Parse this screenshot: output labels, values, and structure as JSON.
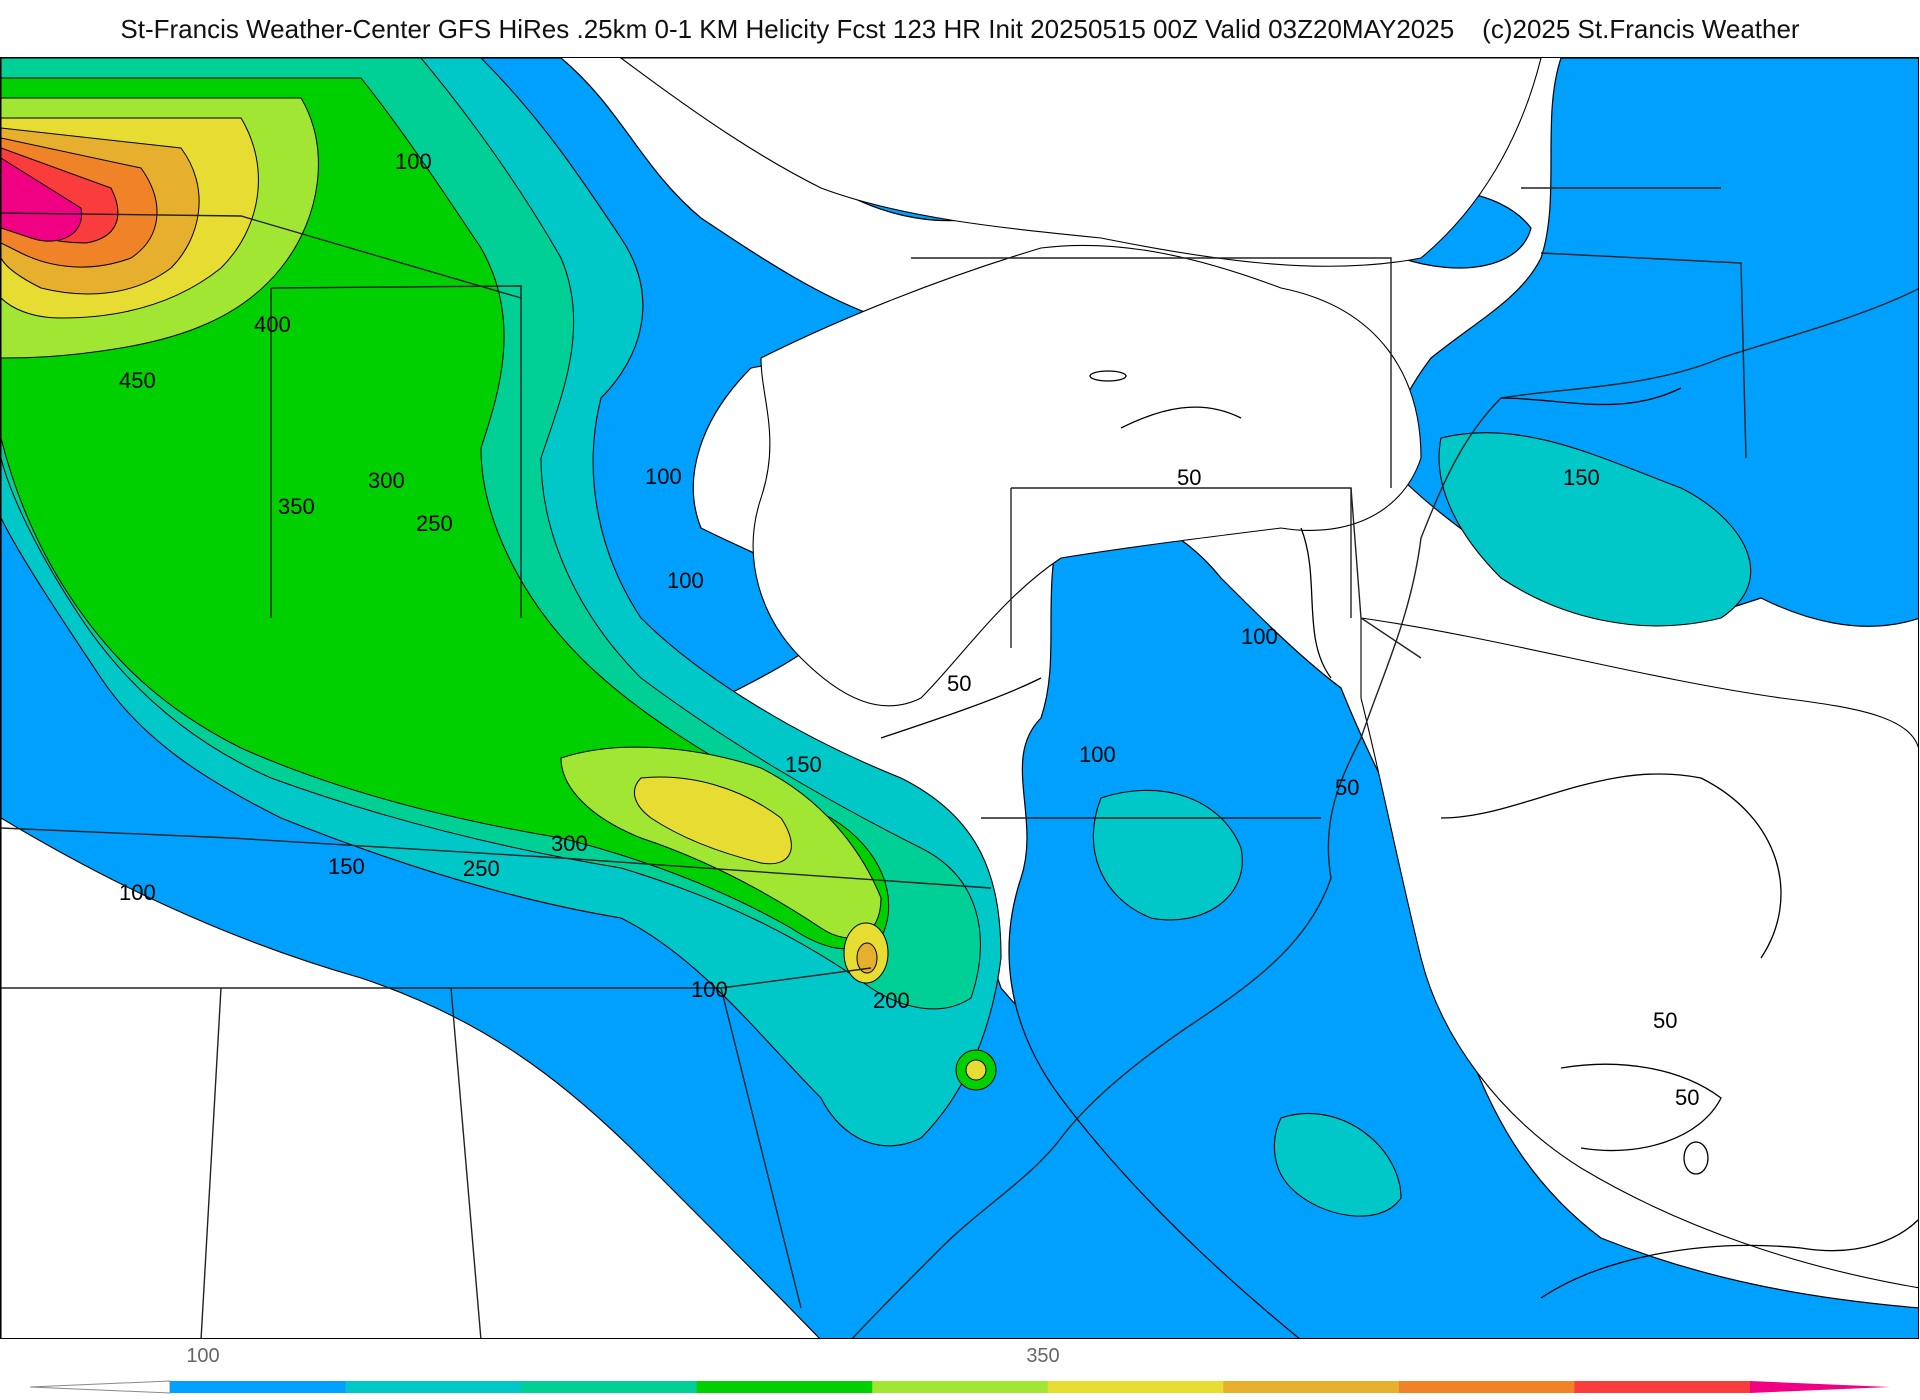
{
  "title": {
    "main": "St-Francis Weather-Center GFS HiRes .25km 0-1 KM Helicity Fcst 123 HR Init 20250515 00Z  Valid 03Z20MAY2025",
    "credit": "(c)2025 St.Francis Weather"
  },
  "contour_labels": [
    "100",
    "400",
    "450",
    "300",
    "350",
    "250",
    "100",
    "100",
    "50",
    "150",
    "100",
    "50",
    "150",
    "100",
    "50",
    "150",
    "250",
    "300",
    "100",
    "200",
    "100",
    "50",
    "50"
  ],
  "colorbar": {
    "tick_labels": [
      "100",
      "350"
    ],
    "colors": [
      "#ffffff",
      "#00a0ff",
      "#00c8c8",
      "#00d096",
      "#00d000",
      "#a0e632",
      "#e6dc32",
      "#e6af2d",
      "#f08228",
      "#fa3c3c",
      "#f00082"
    ]
  },
  "colors": {
    "blue_50_100": "#00a0ff",
    "cyan_100_150": "#00c8c8",
    "teal_150_200": "#00d096",
    "green_200_300": "#00d000",
    "lime_300_350": "#a0e632",
    "yellow_350_400": "#e6dc32",
    "orange_400_450": "#e6af2d",
    "darkorange_450_500": "#f08228",
    "red_500_550": "#fa3c3c",
    "magenta_550_plus": "#f00082"
  }
}
